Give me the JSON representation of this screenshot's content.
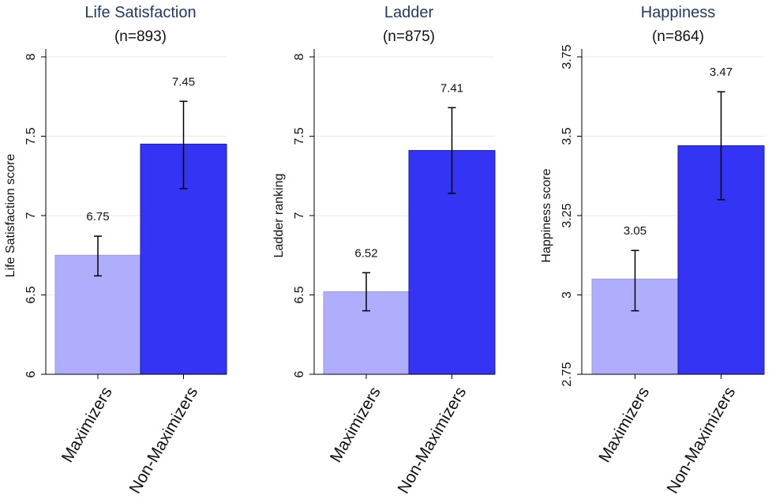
{
  "chart_data": [
    {
      "type": "bar",
      "title": "Life Satisfaction",
      "subtitle": "(n=893)",
      "ylabel": "Life Satisfaction score",
      "ylim": [
        6,
        8
      ],
      "yticks": [
        "6",
        "6.5",
        "7",
        "7.5",
        "8"
      ],
      "yticks_values": [
        6,
        6.5,
        7,
        7.5,
        8
      ],
      "categories": [
        "Maximizers",
        "Non-Maximizers"
      ],
      "values": [
        6.75,
        7.45
      ],
      "value_labels": [
        "6.75",
        "7.45"
      ],
      "error_low": [
        6.62,
        7.17
      ],
      "error_high": [
        6.87,
        7.72
      ],
      "colors": [
        "#aeaefc",
        "#3434f4"
      ],
      "grid": true
    },
    {
      "type": "bar",
      "title": "Ladder",
      "subtitle": "(n=875)",
      "ylabel": "Ladder ranking",
      "ylim": [
        6,
        8
      ],
      "yticks": [
        "6",
        "6.5",
        "7",
        "7.5",
        "8"
      ],
      "yticks_values": [
        6,
        6.5,
        7,
        7.5,
        8
      ],
      "categories": [
        "Maximizers",
        "Non-Maximizers"
      ],
      "values": [
        6.52,
        7.41
      ],
      "value_labels": [
        "6.52",
        "7.41"
      ],
      "error_low": [
        6.4,
        7.14
      ],
      "error_high": [
        6.64,
        7.68
      ],
      "colors": [
        "#aeaefc",
        "#3434f4"
      ],
      "grid": true
    },
    {
      "type": "bar",
      "title": "Happiness",
      "subtitle": "(n=864)",
      "ylabel": "Happiness score",
      "ylim": [
        2.75,
        3.75
      ],
      "yticks": [
        "2.75",
        "3",
        "3.25",
        "3.5",
        "3.75"
      ],
      "yticks_values": [
        2.75,
        3,
        3.25,
        3.5,
        3.75
      ],
      "categories": [
        "Maximizers",
        "Non-Maximizers"
      ],
      "values": [
        3.05,
        3.47
      ],
      "value_labels": [
        "3.05",
        "3.47"
      ],
      "error_low": [
        2.95,
        3.3
      ],
      "error_high": [
        3.14,
        3.64
      ],
      "colors": [
        "#aeaefc",
        "#3434f4"
      ],
      "grid": true
    }
  ]
}
